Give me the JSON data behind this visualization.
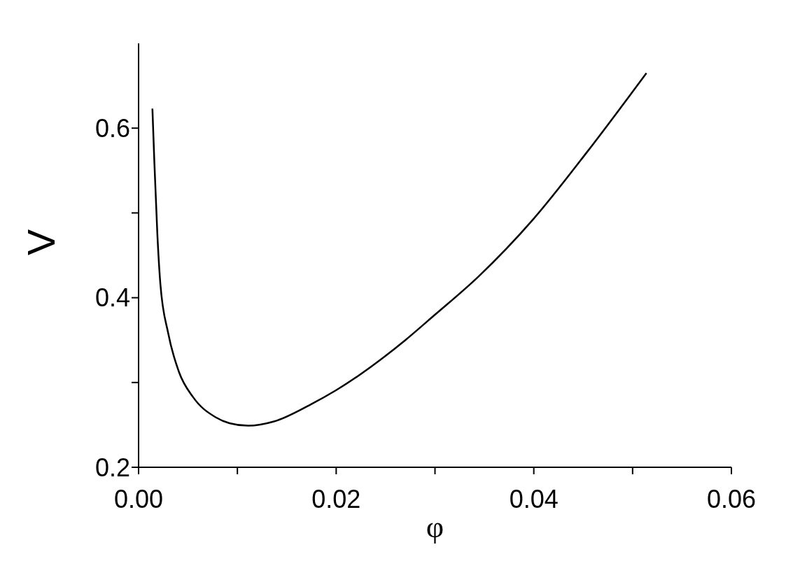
{
  "chart_data": {
    "type": "line",
    "xlabel": "φ",
    "ylabel": "V",
    "x": [
      0.0014,
      0.0016,
      0.0019,
      0.0022,
      0.003,
      0.0041,
      0.0055,
      0.0078,
      0.0092,
      0.0111,
      0.0137,
      0.0174,
      0.02,
      0.027,
      0.0299,
      0.0344,
      0.0399,
      0.0454,
      0.0514
    ],
    "series": [
      {
        "color": "#000000",
        "values": [
          0.623,
          0.559,
          0.475,
          0.417,
          0.358,
          0.312,
          0.283,
          0.259,
          0.252,
          0.249,
          0.254,
          0.274,
          0.291,
          0.35,
          0.379,
          0.425,
          0.492,
          0.572,
          0.665
        ]
      }
    ],
    "xlim": [
      0,
      0.06
    ],
    "xticks": [
      {
        "value": 0,
        "label": "0.00"
      },
      {
        "value": 0.01,
        "label": null
      },
      {
        "value": 0.02,
        "label": "0.02"
      },
      {
        "value": 0.03,
        "label": null
      },
      {
        "value": 0.04,
        "label": "0.04"
      },
      {
        "value": 0.05,
        "label": null
      },
      {
        "value": 0.06,
        "label": "0.06"
      }
    ],
    "ylim": [
      0.2,
      0.7
    ],
    "yticks": [
      {
        "value": 0.2,
        "label": "0.2"
      },
      {
        "value": 0.3,
        "label": null
      },
      {
        "value": 0.4,
        "label": "0.4"
      },
      {
        "value": 0.5,
        "label": null
      },
      {
        "value": 0.6,
        "label": "0.6"
      }
    ],
    "grid": false,
    "legend": false,
    "marker": "none",
    "line_style": "solid"
  }
}
